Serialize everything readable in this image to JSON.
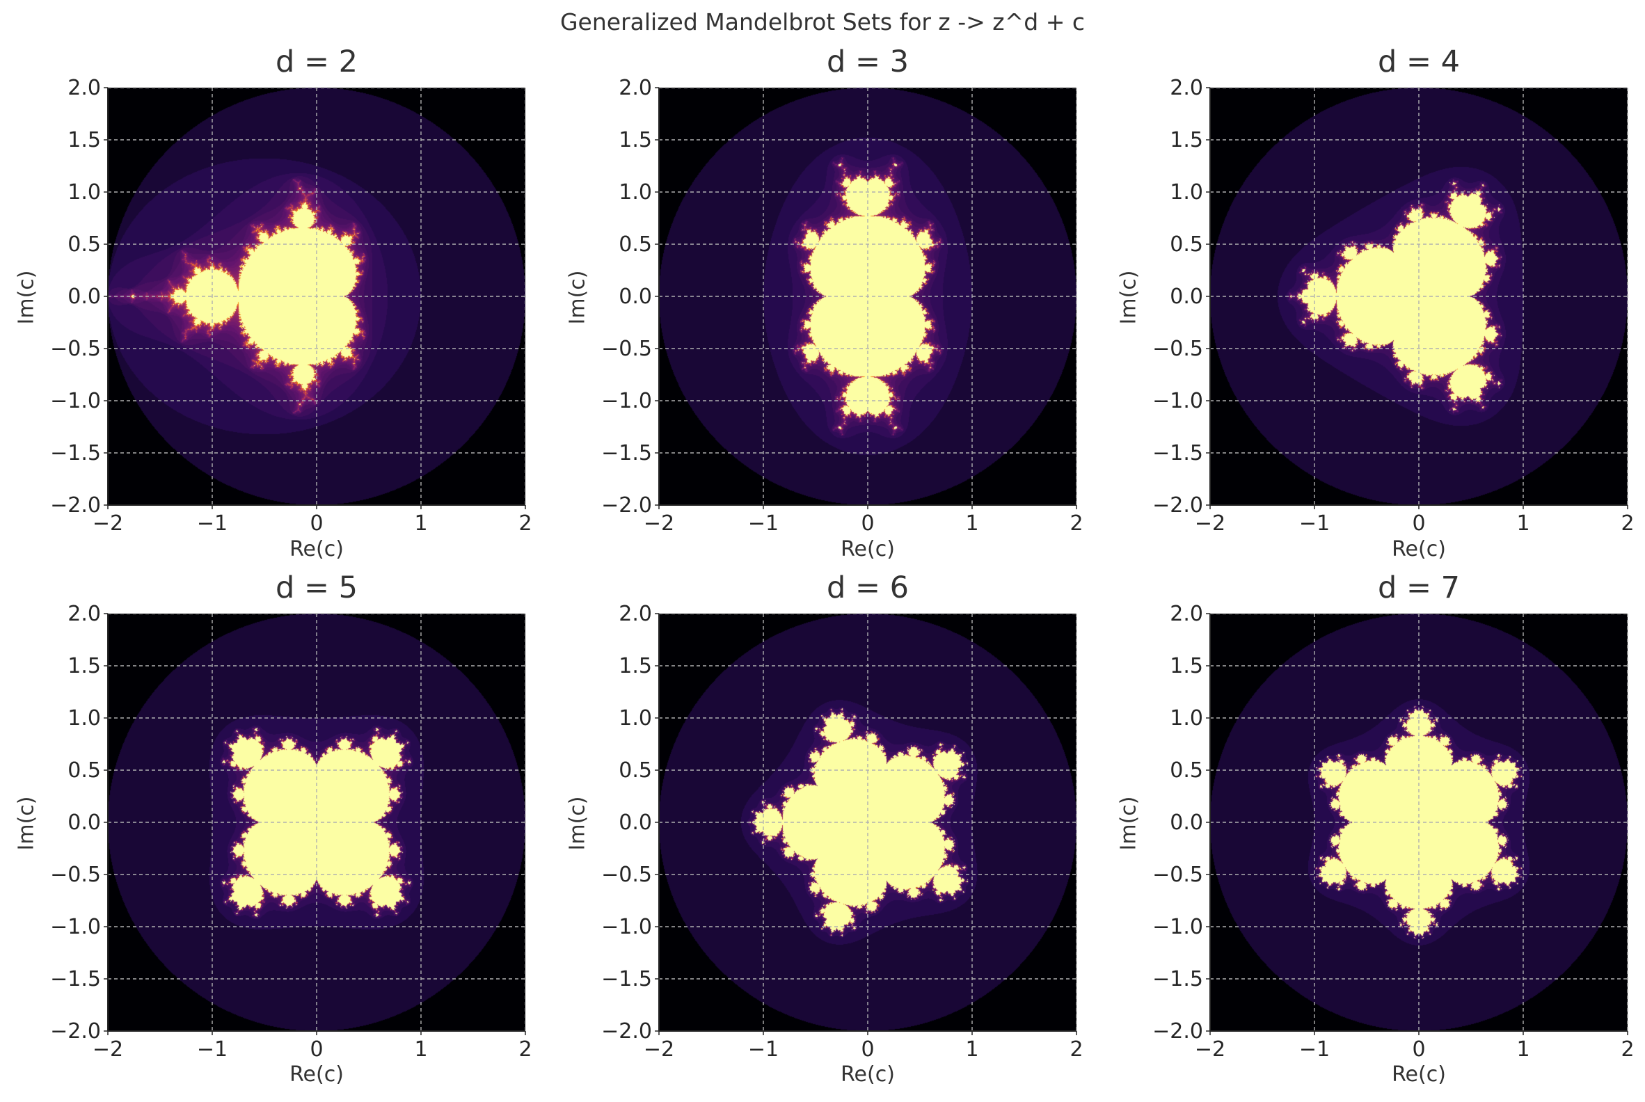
{
  "suptitle": "Generalized Mandelbrot Sets for z -> z^d + c",
  "colors": {
    "background": "#000004",
    "set_interior": "#fcfea4",
    "boundary": "#b73779",
    "grid": "#b0b0b0",
    "colormap": "inferno"
  },
  "chart_data": [
    {
      "type": "heatmap",
      "title": "d = 2",
      "d": 2,
      "xlabel": "Re(c)",
      "ylabel": "Im(c)",
      "xlim": [
        -2,
        2
      ],
      "ylim": [
        -2,
        2
      ],
      "xticks": [
        "−2",
        "−1",
        "0",
        "1",
        "2"
      ],
      "yticks": [
        "2.0",
        "1.5",
        "1.0",
        "0.5",
        "0.0",
        "−0.5",
        "−1.0",
        "−1.5",
        "−2.0"
      ],
      "grid": true
    },
    {
      "type": "heatmap",
      "title": "d = 3",
      "d": 3,
      "xlabel": "Re(c)",
      "ylabel": "Im(c)",
      "xlim": [
        -2,
        2
      ],
      "ylim": [
        -2,
        2
      ],
      "xticks": [
        "−2",
        "−1",
        "0",
        "1",
        "2"
      ],
      "yticks": [
        "2.0",
        "1.5",
        "1.0",
        "0.5",
        "0.0",
        "−0.5",
        "−1.0",
        "−1.5",
        "−2.0"
      ],
      "grid": true
    },
    {
      "type": "heatmap",
      "title": "d = 4",
      "d": 4,
      "xlabel": "Re(c)",
      "ylabel": "Im(c)",
      "xlim": [
        -2,
        2
      ],
      "ylim": [
        -2,
        2
      ],
      "xticks": [
        "−2",
        "−1",
        "0",
        "1",
        "2"
      ],
      "yticks": [
        "2.0",
        "1.5",
        "1.0",
        "0.5",
        "0.0",
        "−0.5",
        "−1.0",
        "−1.5",
        "−2.0"
      ],
      "grid": true
    },
    {
      "type": "heatmap",
      "title": "d = 5",
      "d": 5,
      "xlabel": "Re(c)",
      "ylabel": "Im(c)",
      "xlim": [
        -2,
        2
      ],
      "ylim": [
        -2,
        2
      ],
      "xticks": [
        "−2",
        "−1",
        "0",
        "1",
        "2"
      ],
      "yticks": [
        "2.0",
        "1.5",
        "1.0",
        "0.5",
        "0.0",
        "−0.5",
        "−1.0",
        "−1.5",
        "−2.0"
      ],
      "grid": true
    },
    {
      "type": "heatmap",
      "title": "d = 6",
      "d": 6,
      "xlabel": "Re(c)",
      "ylabel": "Im(c)",
      "xlim": [
        -2,
        2
      ],
      "ylim": [
        -2,
        2
      ],
      "xticks": [
        "−2",
        "−1",
        "0",
        "1",
        "2"
      ],
      "yticks": [
        "2.0",
        "1.5",
        "1.0",
        "0.5",
        "0.0",
        "−0.5",
        "−1.0",
        "−1.5",
        "−2.0"
      ],
      "grid": true
    },
    {
      "type": "heatmap",
      "title": "d = 7",
      "d": 7,
      "xlabel": "Re(c)",
      "ylabel": "Im(c)",
      "xlim": [
        -2,
        2
      ],
      "ylim": [
        -2,
        2
      ],
      "xticks": [
        "−2",
        "−1",
        "0",
        "1",
        "2"
      ],
      "yticks": [
        "2.0",
        "1.5",
        "1.0",
        "0.5",
        "0.0",
        "−0.5",
        "−1.0",
        "−1.5",
        "−2.0"
      ],
      "grid": true
    }
  ]
}
